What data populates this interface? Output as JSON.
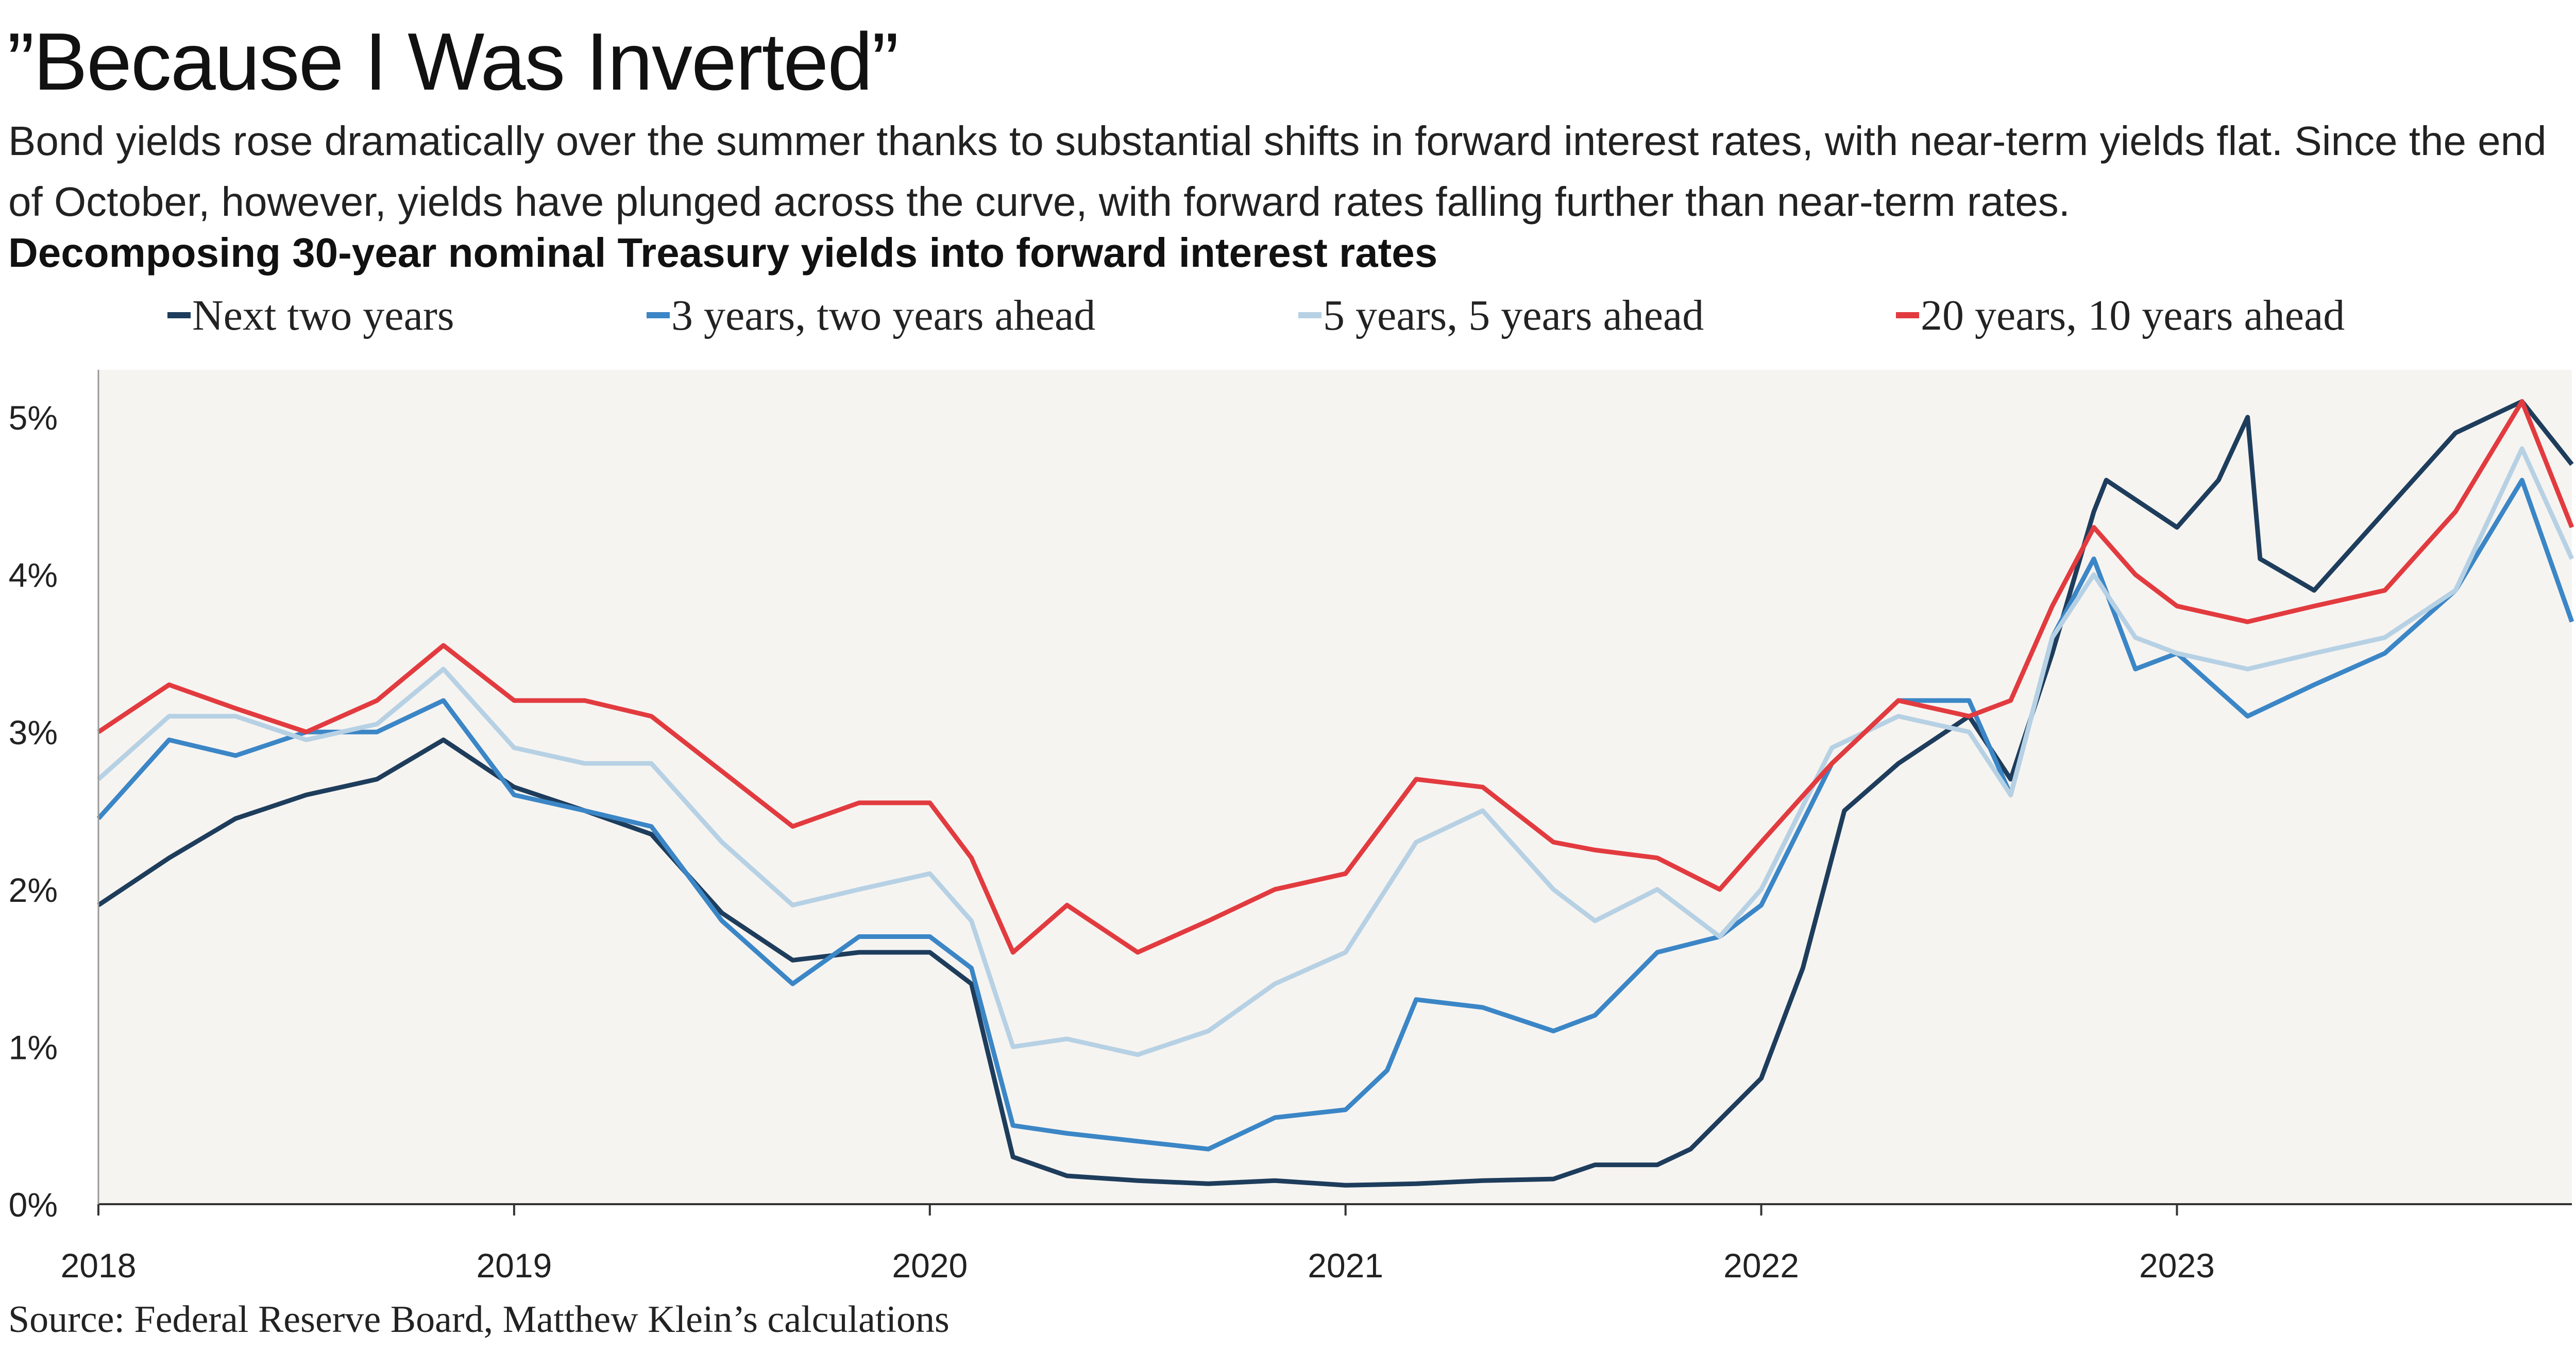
{
  "title": "”Because I Was Inverted”",
  "subtitle": "Bond yields rose dramatically over the summer thanks to substantial shifts in forward interest rates, with near-term yields flat. Since the end of October, however, yields have plunged across the curve, with forward rates falling further than near-term rates.",
  "source": "Source: Federal Reserve Board, Matthew Klein’s calculations",
  "chart_data": {
    "type": "line",
    "title": "Decomposing 30-year nominal Treasury yields into forward interest rates",
    "xlabel": "",
    "ylabel": "",
    "xlim": [
      2018.0,
      2023.95
    ],
    "ylim": [
      0,
      5.2
    ],
    "grid": false,
    "legend_placement": "top",
    "x_ticks": [
      2018,
      2019,
      2020,
      2021,
      2022,
      2023
    ],
    "x_tick_labels": [
      "2018",
      "2019",
      "2020",
      "2021",
      "2022",
      "2023"
    ],
    "y_ticks": [
      0,
      1,
      2,
      3,
      4,
      5
    ],
    "y_tick_labels": [
      "0%",
      "1%",
      "2%",
      "3%",
      "4%",
      "5%"
    ],
    "series": [
      {
        "name": "Next two years",
        "color": "#1e3d5c",
        "x": [
          2018.0,
          2018.17,
          2018.33,
          2018.5,
          2018.67,
          2018.83,
          2019.0,
          2019.17,
          2019.33,
          2019.5,
          2019.67,
          2019.83,
          2020.0,
          2020.1,
          2020.2,
          2020.33,
          2020.5,
          2020.67,
          2020.83,
          2021.0,
          2021.17,
          2021.33,
          2021.5,
          2021.6,
          2021.75,
          2021.83,
          2022.0,
          2022.1,
          2022.2,
          2022.33,
          2022.5,
          2022.6,
          2022.7,
          2022.8,
          2022.83,
          2023.0,
          2023.1,
          2023.17,
          2023.2,
          2023.33,
          2023.5,
          2023.67,
          2023.83,
          2023.95
        ],
        "values": [
          1.9,
          2.2,
          2.45,
          2.6,
          2.7,
          2.95,
          2.65,
          2.5,
          2.35,
          1.85,
          1.55,
          1.6,
          1.6,
          1.4,
          0.3,
          0.18,
          0.15,
          0.13,
          0.15,
          0.12,
          0.13,
          0.15,
          0.16,
          0.25,
          0.25,
          0.35,
          0.8,
          1.5,
          2.5,
          2.8,
          3.1,
          2.7,
          3.5,
          4.4,
          4.6,
          4.3,
          4.6,
          5.0,
          4.1,
          3.9,
          4.4,
          4.9,
          5.1,
          4.7
        ]
      },
      {
        "name": "3 years, two years ahead",
        "color": "#3b86c6",
        "x": [
          2018.0,
          2018.17,
          2018.33,
          2018.5,
          2018.67,
          2018.83,
          2019.0,
          2019.17,
          2019.33,
          2019.5,
          2019.67,
          2019.83,
          2020.0,
          2020.1,
          2020.2,
          2020.33,
          2020.5,
          2020.67,
          2020.83,
          2021.0,
          2021.1,
          2021.17,
          2021.33,
          2021.5,
          2021.6,
          2021.75,
          2021.9,
          2022.0,
          2022.17,
          2022.33,
          2022.5,
          2022.6,
          2022.7,
          2022.8,
          2022.9,
          2023.0,
          2023.17,
          2023.33,
          2023.5,
          2023.67,
          2023.83,
          2023.95
        ],
        "values": [
          2.45,
          2.95,
          2.85,
          3.0,
          3.0,
          3.2,
          2.6,
          2.5,
          2.4,
          1.8,
          1.4,
          1.7,
          1.7,
          1.5,
          0.5,
          0.45,
          0.4,
          0.35,
          0.55,
          0.6,
          0.85,
          1.3,
          1.25,
          1.1,
          1.2,
          1.6,
          1.7,
          1.9,
          2.8,
          3.2,
          3.2,
          2.6,
          3.6,
          4.1,
          3.4,
          3.5,
          3.1,
          3.3,
          3.5,
          3.9,
          4.6,
          3.7
        ]
      },
      {
        "name": "5 years, 5 years ahead",
        "color": "#b7d1e4",
        "x": [
          2018.0,
          2018.17,
          2018.33,
          2018.5,
          2018.67,
          2018.83,
          2019.0,
          2019.17,
          2019.33,
          2019.5,
          2019.67,
          2019.83,
          2020.0,
          2020.1,
          2020.2,
          2020.33,
          2020.5,
          2020.67,
          2020.83,
          2021.0,
          2021.17,
          2021.33,
          2021.5,
          2021.6,
          2021.75,
          2021.9,
          2022.0,
          2022.17,
          2022.33,
          2022.5,
          2022.6,
          2022.7,
          2022.8,
          2022.9,
          2023.0,
          2023.17,
          2023.33,
          2023.5,
          2023.67,
          2023.83,
          2023.95
        ],
        "values": [
          2.7,
          3.1,
          3.1,
          2.95,
          3.05,
          3.4,
          2.9,
          2.8,
          2.8,
          2.3,
          1.9,
          2.0,
          2.1,
          1.8,
          1.0,
          1.05,
          0.95,
          1.1,
          1.4,
          1.6,
          2.3,
          2.5,
          2.0,
          1.8,
          2.0,
          1.7,
          2.0,
          2.9,
          3.1,
          3.0,
          2.6,
          3.6,
          4.0,
          3.6,
          3.5,
          3.4,
          3.5,
          3.6,
          3.9,
          4.8,
          4.1
        ]
      },
      {
        "name": "20 years, 10 years ahead",
        "color": "#e23b3f",
        "x": [
          2018.0,
          2018.17,
          2018.33,
          2018.5,
          2018.67,
          2018.83,
          2019.0,
          2019.17,
          2019.33,
          2019.5,
          2019.67,
          2019.83,
          2020.0,
          2020.1,
          2020.2,
          2020.33,
          2020.5,
          2020.67,
          2020.83,
          2021.0,
          2021.17,
          2021.33,
          2021.5,
          2021.6,
          2021.75,
          2021.9,
          2022.0,
          2022.17,
          2022.33,
          2022.5,
          2022.6,
          2022.7,
          2022.8,
          2022.9,
          2023.0,
          2023.17,
          2023.33,
          2023.5,
          2023.67,
          2023.83,
          2023.95
        ],
        "values": [
          3.0,
          3.3,
          3.15,
          3.0,
          3.2,
          3.55,
          3.2,
          3.2,
          3.1,
          2.75,
          2.4,
          2.55,
          2.55,
          2.2,
          1.6,
          1.9,
          1.6,
          1.8,
          2.0,
          2.1,
          2.7,
          2.65,
          2.3,
          2.25,
          2.2,
          2.0,
          2.3,
          2.8,
          3.2,
          3.1,
          3.2,
          3.8,
          4.3,
          4.0,
          3.8,
          3.7,
          3.8,
          3.9,
          4.4,
          5.1,
          4.3
        ]
      }
    ]
  }
}
